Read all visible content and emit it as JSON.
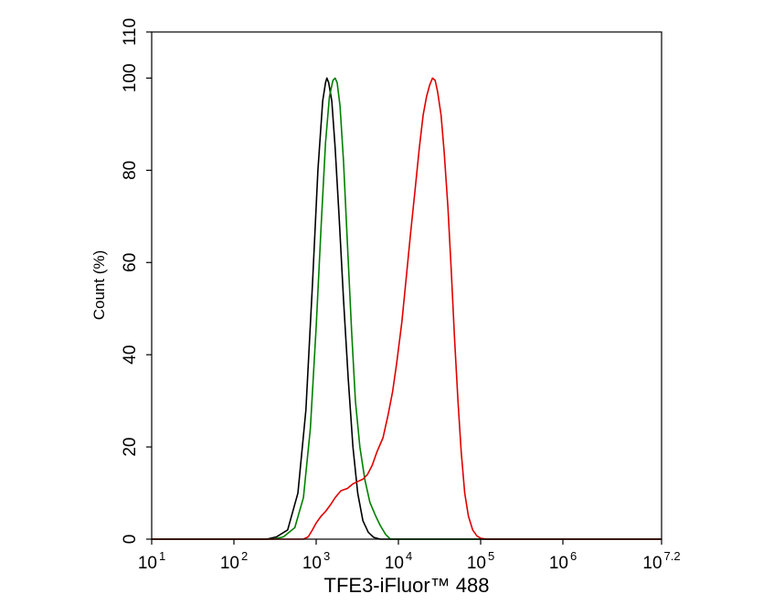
{
  "chart_data": {
    "type": "line",
    "title": "",
    "xlabel": "TFE3-iFluor™ 488",
    "ylabel": "Count  (%)",
    "x_scale": "log10",
    "xlim": [
      10,
      15848932
    ],
    "ylim": [
      0,
      110
    ],
    "grid": false,
    "legend": "none",
    "x_ticks": [
      {
        "value": 10,
        "base": "10",
        "exp": "1"
      },
      {
        "value": 100,
        "base": "10",
        "exp": "2"
      },
      {
        "value": 1000,
        "base": "10",
        "exp": "3"
      },
      {
        "value": 10000,
        "base": "10",
        "exp": "4"
      },
      {
        "value": 100000,
        "base": "10",
        "exp": "5"
      },
      {
        "value": 1000000,
        "base": "10",
        "exp": "6"
      },
      {
        "value": 15848932,
        "base": "10",
        "exp": "7.2"
      }
    ],
    "y_ticks": [
      {
        "value": 0,
        "label": "0"
      },
      {
        "value": 20,
        "label": "20"
      },
      {
        "value": 40,
        "label": "40"
      },
      {
        "value": 60,
        "label": "60"
      },
      {
        "value": 80,
        "label": "80"
      },
      {
        "value": 100,
        "label": "100"
      },
      {
        "value": 110,
        "label": "110"
      }
    ],
    "series": [
      {
        "color": "#000000",
        "points": [
          [
            10,
            0
          ],
          [
            250,
            0
          ],
          [
            330,
            0.5
          ],
          [
            450,
            2
          ],
          [
            600,
            10
          ],
          [
            750,
            28
          ],
          [
            900,
            55
          ],
          [
            1050,
            80
          ],
          [
            1200,
            95
          ],
          [
            1300,
            99
          ],
          [
            1350,
            100
          ],
          [
            1420,
            99
          ],
          [
            1550,
            95
          ],
          [
            1700,
            85
          ],
          [
            1900,
            70
          ],
          [
            2150,
            52
          ],
          [
            2450,
            35
          ],
          [
            2800,
            20
          ],
          [
            3200,
            10
          ],
          [
            3700,
            4
          ],
          [
            4300,
            1.5
          ],
          [
            5000,
            0.4
          ],
          [
            6000,
            0
          ],
          [
            15848932,
            0
          ]
        ]
      },
      {
        "color": "#008000",
        "points": [
          [
            10,
            0
          ],
          [
            300,
            0
          ],
          [
            400,
            0.5
          ],
          [
            550,
            2.5
          ],
          [
            700,
            9
          ],
          [
            850,
            24
          ],
          [
            1000,
            46
          ],
          [
            1150,
            68
          ],
          [
            1300,
            86
          ],
          [
            1450,
            96
          ],
          [
            1600,
            99.5
          ],
          [
            1700,
            100
          ],
          [
            1800,
            99
          ],
          [
            1950,
            94
          ],
          [
            2150,
            82
          ],
          [
            2400,
            64
          ],
          [
            2700,
            45
          ],
          [
            3000,
            30
          ],
          [
            3400,
            20
          ],
          [
            3900,
            13
          ],
          [
            4500,
            8
          ],
          [
            5300,
            5
          ],
          [
            6000,
            3
          ],
          [
            7000,
            1
          ],
          [
            8000,
            0
          ],
          [
            15848932,
            0
          ]
        ]
      },
      {
        "color": "#e00000",
        "points": [
          [
            10,
            0
          ],
          [
            700,
            0
          ],
          [
            800,
            0.5
          ],
          [
            900,
            2
          ],
          [
            1000,
            3.5
          ],
          [
            1150,
            5
          ],
          [
            1300,
            6
          ],
          [
            1500,
            7.5
          ],
          [
            1700,
            9
          ],
          [
            2000,
            10.5
          ],
          [
            2400,
            11
          ],
          [
            2800,
            12
          ],
          [
            3200,
            12.5
          ],
          [
            3700,
            13
          ],
          [
            4200,
            14
          ],
          [
            4800,
            16
          ],
          [
            5500,
            19
          ],
          [
            6500,
            22
          ],
          [
            7500,
            27
          ],
          [
            8500,
            32
          ],
          [
            9500,
            38
          ],
          [
            11000,
            47
          ],
          [
            12500,
            57
          ],
          [
            14000,
            66
          ],
          [
            16000,
            76
          ],
          [
            18000,
            85
          ],
          [
            20000,
            92
          ],
          [
            22000,
            96
          ],
          [
            24000,
            98.5
          ],
          [
            26000,
            100
          ],
          [
            28000,
            99.5
          ],
          [
            30000,
            97
          ],
          [
            33000,
            92
          ],
          [
            36000,
            84
          ],
          [
            40000,
            72
          ],
          [
            44000,
            58
          ],
          [
            48000,
            44
          ],
          [
            53000,
            30
          ],
          [
            58000,
            19
          ],
          [
            64000,
            10
          ],
          [
            71000,
            5
          ],
          [
            80000,
            2
          ],
          [
            90000,
            0.7
          ],
          [
            100000,
            0.2
          ],
          [
            120000,
            0
          ],
          [
            15848932,
            0
          ]
        ]
      }
    ]
  }
}
